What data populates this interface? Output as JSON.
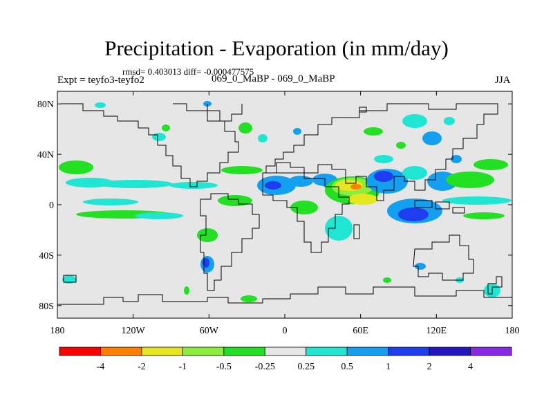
{
  "title": "Precipitation - Evaporation (in mm/day)",
  "stats_line": "rmsd= 0.403013 diff= -0.000477575",
  "experiment_label": "Expt = teyfo3-teyfo2",
  "comparison_label": "069_0_MaBP - 069_0_MaBP",
  "season_label": "JJA",
  "map": {
    "lat_ticks": [
      "80N",
      "40N",
      "0",
      "40S",
      "80S"
    ],
    "lat_values": [
      80,
      40,
      0,
      -40,
      -80
    ],
    "lon_ticks": [
      "180",
      "120W",
      "60W",
      "0",
      "60E",
      "120E",
      "180"
    ],
    "lon_values": [
      -180,
      -120,
      -60,
      0,
      60,
      120,
      180
    ],
    "lat_range": [
      -90,
      90
    ],
    "lon_range": [
      -180,
      180
    ],
    "background_color": "#e6e6e6"
  },
  "colorbar": {
    "labels": [
      "-4",
      "-2",
      "-1",
      "-0.5",
      "-0.25",
      "0.25",
      "0.5",
      "1",
      "2",
      "4"
    ],
    "colors": [
      "#ff0000",
      "#ff7f00",
      "#e6e61e",
      "#8cee3c",
      "#22e022",
      "#e6e6e6",
      "#1ee6d2",
      "#14a0f0",
      "#1e3cf0",
      "#2318c0",
      "#8a28e6"
    ]
  }
}
